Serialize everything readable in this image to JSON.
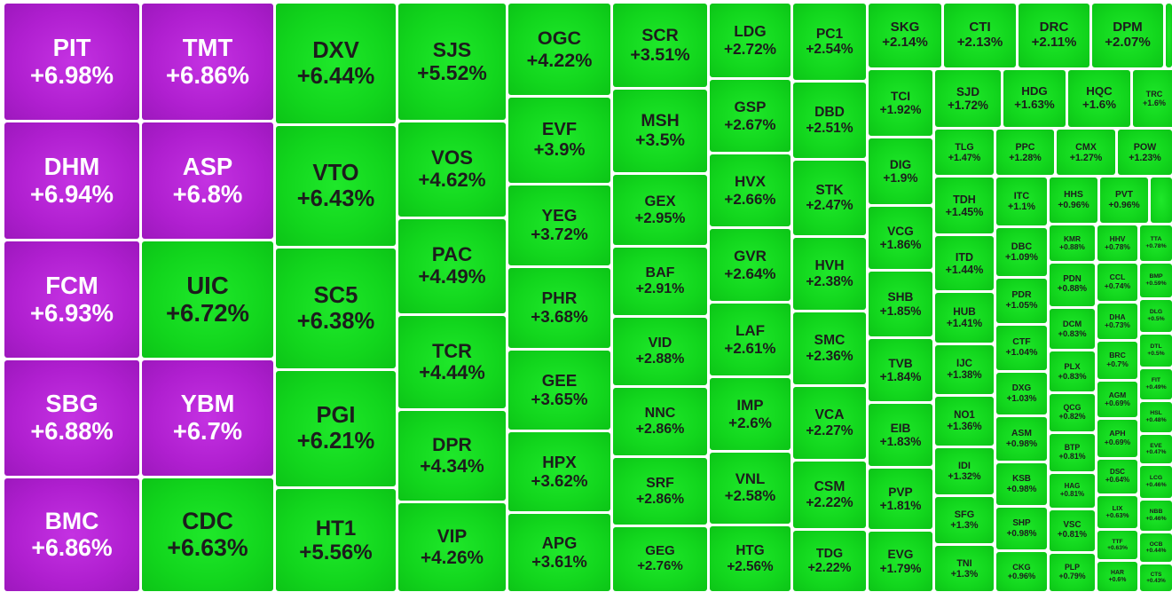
{
  "colors": {
    "ceiling": "#b01fd0",
    "up": "#12d61d",
    "ceiling_text": "#ffffff",
    "up_text": "#1c1c1c",
    "background": "#ffffff"
  },
  "chart_data": {
    "type": "treemap",
    "title": "",
    "tiles": [
      {
        "ticker": "PIT",
        "change": "+6.98%",
        "value": 6.98,
        "status": "ceiling"
      },
      {
        "ticker": "DHM",
        "change": "+6.94%",
        "value": 6.94,
        "status": "ceiling"
      },
      {
        "ticker": "FCM",
        "change": "+6.93%",
        "value": 6.93,
        "status": "ceiling"
      },
      {
        "ticker": "SBG",
        "change": "+6.88%",
        "value": 6.88,
        "status": "ceiling"
      },
      {
        "ticker": "BMC",
        "change": "+6.86%",
        "value": 6.86,
        "status": "ceiling"
      },
      {
        "ticker": "TMT",
        "change": "+6.86%",
        "value": 6.86,
        "status": "ceiling"
      },
      {
        "ticker": "ASP",
        "change": "+6.8%",
        "value": 6.8,
        "status": "ceiling"
      },
      {
        "ticker": "UIC",
        "change": "+6.72%",
        "value": 6.72,
        "status": "up"
      },
      {
        "ticker": "YBM",
        "change": "+6.7%",
        "value": 6.7,
        "status": "ceiling"
      },
      {
        "ticker": "CDC",
        "change": "+6.63%",
        "value": 6.63,
        "status": "up"
      },
      {
        "ticker": "DXV",
        "change": "+6.44%",
        "value": 6.44,
        "status": "up"
      },
      {
        "ticker": "VTO",
        "change": "+6.43%",
        "value": 6.43,
        "status": "up"
      },
      {
        "ticker": "SC5",
        "change": "+6.38%",
        "value": 6.38,
        "status": "up"
      },
      {
        "ticker": "PGI",
        "change": "+6.21%",
        "value": 6.21,
        "status": "up"
      },
      {
        "ticker": "HT1",
        "change": "+5.56%",
        "value": 5.56,
        "status": "up"
      },
      {
        "ticker": "SJS",
        "change": "+5.52%",
        "value": 5.52,
        "status": "up"
      },
      {
        "ticker": "VOS",
        "change": "+4.62%",
        "value": 4.62,
        "status": "up"
      },
      {
        "ticker": "PAC",
        "change": "+4.49%",
        "value": 4.49,
        "status": "up"
      },
      {
        "ticker": "TCR",
        "change": "+4.44%",
        "value": 4.44,
        "status": "up"
      },
      {
        "ticker": "DPR",
        "change": "+4.34%",
        "value": 4.34,
        "status": "up"
      },
      {
        "ticker": "VIP",
        "change": "+4.26%",
        "value": 4.26,
        "status": "up"
      },
      {
        "ticker": "OGC",
        "change": "+4.22%",
        "value": 4.22,
        "status": "up"
      },
      {
        "ticker": "EVF",
        "change": "+3.9%",
        "value": 3.9,
        "status": "up"
      },
      {
        "ticker": "YEG",
        "change": "+3.72%",
        "value": 3.72,
        "status": "up"
      },
      {
        "ticker": "PHR",
        "change": "+3.68%",
        "value": 3.68,
        "status": "up"
      },
      {
        "ticker": "GEE",
        "change": "+3.65%",
        "value": 3.65,
        "status": "up"
      },
      {
        "ticker": "HPX",
        "change": "+3.62%",
        "value": 3.62,
        "status": "up"
      },
      {
        "ticker": "APG",
        "change": "+3.61%",
        "value": 3.61,
        "status": "up"
      },
      {
        "ticker": "SCR",
        "change": "+3.51%",
        "value": 3.51,
        "status": "up"
      },
      {
        "ticker": "MSH",
        "change": "+3.5%",
        "value": 3.5,
        "status": "up"
      },
      {
        "ticker": "GEX",
        "change": "+2.95%",
        "value": 2.95,
        "status": "up"
      },
      {
        "ticker": "BAF",
        "change": "+2.91%",
        "value": 2.91,
        "status": "up"
      },
      {
        "ticker": "VID",
        "change": "+2.88%",
        "value": 2.88,
        "status": "up"
      },
      {
        "ticker": "NNC",
        "change": "+2.86%",
        "value": 2.86,
        "status": "up"
      },
      {
        "ticker": "SRF",
        "change": "+2.86%",
        "value": 2.86,
        "status": "up"
      },
      {
        "ticker": "GEG",
        "change": "+2.76%",
        "value": 2.76,
        "status": "up"
      },
      {
        "ticker": "LDG",
        "change": "+2.72%",
        "value": 2.72,
        "status": "up"
      },
      {
        "ticker": "GSP",
        "change": "+2.67%",
        "value": 2.67,
        "status": "up"
      },
      {
        "ticker": "HVX",
        "change": "+2.66%",
        "value": 2.66,
        "status": "up"
      },
      {
        "ticker": "GVR",
        "change": "+2.64%",
        "value": 2.64,
        "status": "up"
      },
      {
        "ticker": "LAF",
        "change": "+2.61%",
        "value": 2.61,
        "status": "up"
      },
      {
        "ticker": "IMP",
        "change": "+2.6%",
        "value": 2.6,
        "status": "up"
      },
      {
        "ticker": "VNL",
        "change": "+2.58%",
        "value": 2.58,
        "status": "up"
      },
      {
        "ticker": "HTG",
        "change": "+2.56%",
        "value": 2.56,
        "status": "up"
      },
      {
        "ticker": "PC1",
        "change": "+2.54%",
        "value": 2.54,
        "status": "up"
      },
      {
        "ticker": "DBD",
        "change": "+2.51%",
        "value": 2.51,
        "status": "up"
      },
      {
        "ticker": "STK",
        "change": "+2.47%",
        "value": 2.47,
        "status": "up"
      },
      {
        "ticker": "HVH",
        "change": "+2.38%",
        "value": 2.38,
        "status": "up"
      },
      {
        "ticker": "SMC",
        "change": "+2.36%",
        "value": 2.36,
        "status": "up"
      },
      {
        "ticker": "VCA",
        "change": "+2.27%",
        "value": 2.27,
        "status": "up"
      },
      {
        "ticker": "CSM",
        "change": "+2.22%",
        "value": 2.22,
        "status": "up"
      },
      {
        "ticker": "TDG",
        "change": "+2.22%",
        "value": 2.22,
        "status": "up"
      },
      {
        "ticker": "SKG",
        "change": "+2.14%",
        "value": 2.14,
        "status": "up"
      },
      {
        "ticker": "CTI",
        "change": "+2.13%",
        "value": 2.13,
        "status": "up"
      },
      {
        "ticker": "DRC",
        "change": "+2.11%",
        "value": 2.11,
        "status": "up"
      },
      {
        "ticker": "DPM",
        "change": "+2.07%",
        "value": 2.07,
        "status": "up"
      },
      {
        "ticker": "TCI",
        "change": "+1.92%",
        "value": 1.92,
        "status": "up"
      },
      {
        "ticker": "SJD",
        "change": "+1.72%",
        "value": 1.72,
        "status": "up"
      },
      {
        "ticker": "HDG",
        "change": "+1.63%",
        "value": 1.63,
        "status": "up"
      },
      {
        "ticker": "HQC",
        "change": "+1.6%",
        "value": 1.6,
        "status": "up"
      },
      {
        "ticker": "TRC",
        "change": "+1.6%",
        "value": 1.6,
        "status": "up"
      },
      {
        "ticker": "DIG",
        "change": "+1.9%",
        "value": 1.9,
        "status": "up"
      },
      {
        "ticker": "VCG",
        "change": "+1.86%",
        "value": 1.86,
        "status": "up"
      },
      {
        "ticker": "SHB",
        "change": "+1.85%",
        "value": 1.85,
        "status": "up"
      },
      {
        "ticker": "TVB",
        "change": "+1.84%",
        "value": 1.84,
        "status": "up"
      },
      {
        "ticker": "EIB",
        "change": "+1.83%",
        "value": 1.83,
        "status": "up"
      },
      {
        "ticker": "PVP",
        "change": "+1.81%",
        "value": 1.81,
        "status": "up"
      },
      {
        "ticker": "EVG",
        "change": "+1.79%",
        "value": 1.79,
        "status": "up"
      },
      {
        "ticker": "TLG",
        "change": "+1.47%",
        "value": 1.47,
        "status": "up"
      },
      {
        "ticker": "PPC",
        "change": "+1.28%",
        "value": 1.28,
        "status": "up"
      },
      {
        "ticker": "CMX",
        "change": "+1.27%",
        "value": 1.27,
        "status": "up"
      },
      {
        "ticker": "POW",
        "change": "+1.23%",
        "value": 1.23,
        "status": "up"
      },
      {
        "ticker": "TDH",
        "change": "+1.45%",
        "value": 1.45,
        "status": "up"
      },
      {
        "ticker": "ITD",
        "change": "+1.44%",
        "value": 1.44,
        "status": "up"
      },
      {
        "ticker": "HUB",
        "change": "+1.41%",
        "value": 1.41,
        "status": "up"
      },
      {
        "ticker": "IJC",
        "change": "+1.38%",
        "value": 1.38,
        "status": "up"
      },
      {
        "ticker": "NO1",
        "change": "+1.36%",
        "value": 1.36,
        "status": "up"
      },
      {
        "ticker": "IDI",
        "change": "+1.32%",
        "value": 1.32,
        "status": "up"
      },
      {
        "ticker": "SFG",
        "change": "+1.3%",
        "value": 1.3,
        "status": "up"
      },
      {
        "ticker": "TNI",
        "change": "+1.3%",
        "value": 1.3,
        "status": "up"
      },
      {
        "ticker": "ITC",
        "change": "+1.1%",
        "value": 1.1,
        "status": "up"
      },
      {
        "ticker": "DBC",
        "change": "+1.09%",
        "value": 1.09,
        "status": "up"
      },
      {
        "ticker": "PDR",
        "change": "+1.05%",
        "value": 1.05,
        "status": "up"
      },
      {
        "ticker": "CTF",
        "change": "+1.04%",
        "value": 1.04,
        "status": "up"
      },
      {
        "ticker": "DXG",
        "change": "+1.03%",
        "value": 1.03,
        "status": "up"
      },
      {
        "ticker": "ASM",
        "change": "+0.98%",
        "value": 0.98,
        "status": "up"
      },
      {
        "ticker": "KSB",
        "change": "+0.98%",
        "value": 0.98,
        "status": "up"
      },
      {
        "ticker": "SHP",
        "change": "+0.98%",
        "value": 0.98,
        "status": "up"
      },
      {
        "ticker": "CKG",
        "change": "+0.96%",
        "value": 0.96,
        "status": "up"
      },
      {
        "ticker": "HHS",
        "change": "+0.96%",
        "value": 0.96,
        "status": "up"
      },
      {
        "ticker": "PVT",
        "change": "+0.96%",
        "value": 0.96,
        "status": "up"
      },
      {
        "ticker": "KMR",
        "change": "+0.88%",
        "value": 0.88,
        "status": "up"
      },
      {
        "ticker": "PDN",
        "change": "+0.88%",
        "value": 0.88,
        "status": "up"
      },
      {
        "ticker": "DCM",
        "change": "+0.83%",
        "value": 0.83,
        "status": "up"
      },
      {
        "ticker": "PLX",
        "change": "+0.83%",
        "value": 0.83,
        "status": "up"
      },
      {
        "ticker": "QCG",
        "change": "+0.82%",
        "value": 0.82,
        "status": "up"
      },
      {
        "ticker": "BTP",
        "change": "+0.81%",
        "value": 0.81,
        "status": "up"
      },
      {
        "ticker": "HAG",
        "change": "+0.81%",
        "value": 0.81,
        "status": "up"
      },
      {
        "ticker": "VSC",
        "change": "+0.81%",
        "value": 0.81,
        "status": "up"
      },
      {
        "ticker": "PLP",
        "change": "+0.79%",
        "value": 0.79,
        "status": "up"
      },
      {
        "ticker": "HHV",
        "change": "+0.78%",
        "value": 0.78,
        "status": "up"
      },
      {
        "ticker": "TTA",
        "change": "+0.78%",
        "value": 0.78,
        "status": "up"
      },
      {
        "ticker": "CCL",
        "change": "+0.74%",
        "value": 0.74,
        "status": "up"
      },
      {
        "ticker": "DHA",
        "change": "+0.73%",
        "value": 0.73,
        "status": "up"
      },
      {
        "ticker": "BRC",
        "change": "+0.7%",
        "value": 0.7,
        "status": "up"
      },
      {
        "ticker": "AGM",
        "change": "+0.69%",
        "value": 0.69,
        "status": "up"
      },
      {
        "ticker": "APH",
        "change": "+0.69%",
        "value": 0.69,
        "status": "up"
      },
      {
        "ticker": "DSC",
        "change": "+0.64%",
        "value": 0.64,
        "status": "up"
      },
      {
        "ticker": "LIX",
        "change": "+0.63%",
        "value": 0.63,
        "status": "up"
      },
      {
        "ticker": "TTF",
        "change": "+0.63%",
        "value": 0.63,
        "status": "up"
      },
      {
        "ticker": "HAR",
        "change": "+0.6%",
        "value": 0.6,
        "status": "up"
      },
      {
        "ticker": "BMP",
        "change": "+0.59%",
        "value": 0.59,
        "status": "up"
      },
      {
        "ticker": "DLG",
        "change": "+0.5%",
        "value": 0.5,
        "status": "up"
      },
      {
        "ticker": "DTL",
        "change": "+0.5%",
        "value": 0.5,
        "status": "up"
      },
      {
        "ticker": "FIT",
        "change": "+0.49%",
        "value": 0.49,
        "status": "up"
      },
      {
        "ticker": "HSL",
        "change": "+0.48%",
        "value": 0.48,
        "status": "up"
      },
      {
        "ticker": "EVE",
        "change": "+0.47%",
        "value": 0.47,
        "status": "up"
      },
      {
        "ticker": "LCG",
        "change": "+0.46%",
        "value": 0.46,
        "status": "up"
      },
      {
        "ticker": "NBB",
        "change": "+0.46%",
        "value": 0.46,
        "status": "up"
      },
      {
        "ticker": "OCB",
        "change": "+0.44%",
        "value": 0.44,
        "status": "up"
      },
      {
        "ticker": "CTS",
        "change": "+0.43%",
        "value": 0.43,
        "status": "up"
      }
    ]
  }
}
